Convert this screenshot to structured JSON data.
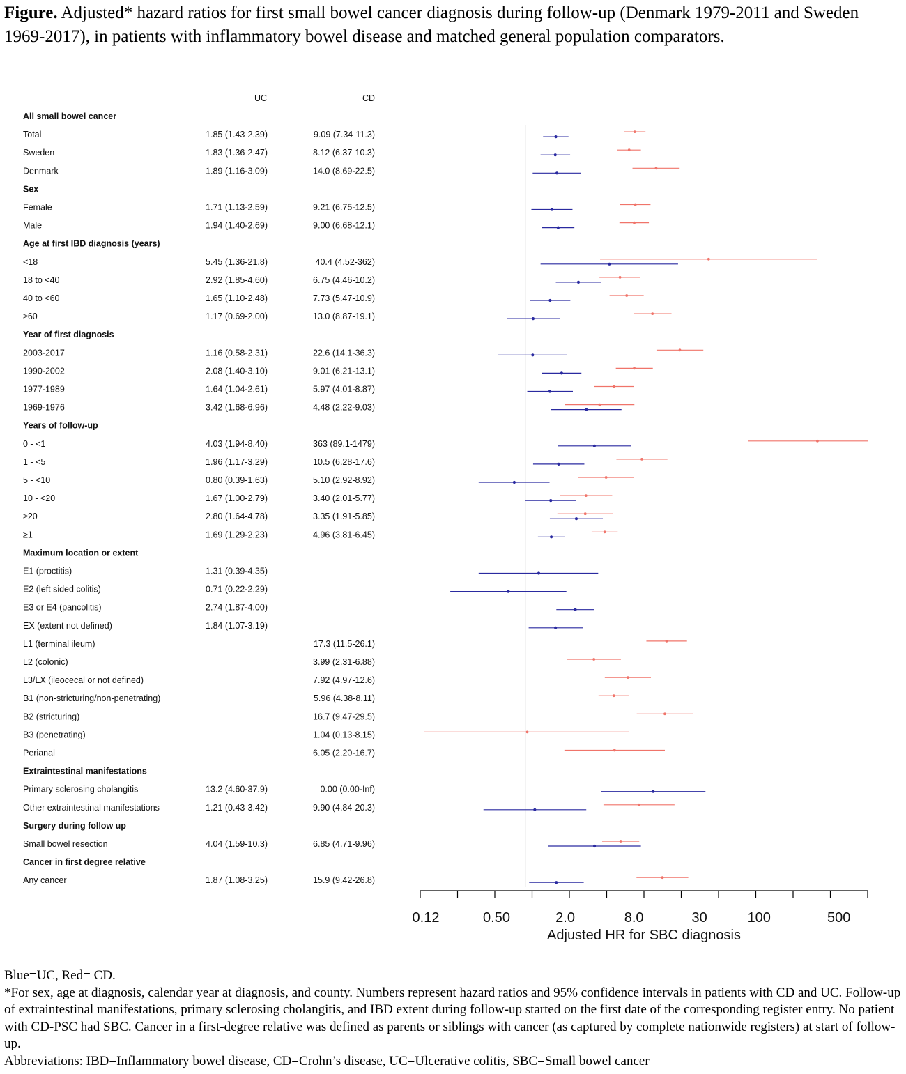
{
  "title": {
    "lead": "Figure.",
    "text": "Adjusted* hazard ratios for first small bowel cancer diagnosis during follow-up (Denmark 1979-2011 and Sweden 1969-2017), in patients with inflammatory bowel disease and matched general population comparators."
  },
  "chart_data": {
    "type": "forest",
    "column_headers": {
      "uc": "UC",
      "cd": "CD"
    },
    "x_scale": "log",
    "xlim": [
      0.12,
      1000
    ],
    "reference_line": 1.0,
    "x_ticks": [
      0.12,
      0.5,
      2.0,
      8.0,
      30,
      100,
      500
    ],
    "x_tick_labels": [
      "0.12",
      "0.50",
      "2.0",
      "8.0",
      "30",
      "100",
      "500"
    ],
    "xlabel": "Adjusted HR for SBC diagnosis",
    "series": [
      {
        "key": "uc",
        "color": "#2a2aa0"
      },
      {
        "key": "cd",
        "color": "#f0746a"
      }
    ],
    "rows": [
      {
        "label": "All small bowel cancer",
        "header": true
      },
      {
        "label": "Total",
        "uc_text": "1.85 (1.43-2.39)",
        "cd_text": "9.09 (7.34-11.3)",
        "uc": [
          1.85,
          1.43,
          2.39
        ],
        "cd": [
          9.09,
          7.34,
          11.3
        ]
      },
      {
        "label": "Sweden",
        "uc_text": "1.83 (1.36-2.47)",
        "cd_text": "8.12 (6.37-10.3)",
        "uc": [
          1.83,
          1.36,
          2.47
        ],
        "cd": [
          8.12,
          6.37,
          10.3
        ]
      },
      {
        "label": "Denmark",
        "uc_text": "1.89 (1.16-3.09)",
        "cd_text": "14.0 (8.69-22.5)",
        "uc": [
          1.89,
          1.16,
          3.09
        ],
        "cd": [
          14.0,
          8.69,
          22.5
        ]
      },
      {
        "label": "Sex",
        "header": true
      },
      {
        "label": "Female",
        "uc_text": "1.71 (1.13-2.59)",
        "cd_text": "9.21 (6.75-12.5)",
        "uc": [
          1.71,
          1.13,
          2.59
        ],
        "cd": [
          9.21,
          6.75,
          12.5
        ]
      },
      {
        "label": "Male",
        "uc_text": "1.94 (1.40-2.69)",
        "cd_text": "9.00 (6.68-12.1)",
        "uc": [
          1.94,
          1.4,
          2.69
        ],
        "cd": [
          9.0,
          6.68,
          12.1
        ]
      },
      {
        "label": "Age at first IBD diagnosis (years)",
        "header": true
      },
      {
        "label": "<18",
        "uc_text": "5.45 (1.36-21.8)",
        "cd_text": "40.4 (4.52-362)",
        "uc": [
          5.45,
          1.36,
          21.8
        ],
        "cd": [
          40.4,
          4.52,
          362
        ]
      },
      {
        "label": "18 to <40",
        "uc_text": "2.92 (1.85-4.60)",
        "cd_text": "6.75 (4.46-10.2)",
        "uc": [
          2.92,
          1.85,
          4.6
        ],
        "cd": [
          6.75,
          4.46,
          10.2
        ]
      },
      {
        "label": "40 to <60",
        "uc_text": "1.65 (1.10-2.48)",
        "cd_text": "7.73 (5.47-10.9)",
        "uc": [
          1.65,
          1.1,
          2.48
        ],
        "cd": [
          7.73,
          5.47,
          10.9
        ]
      },
      {
        "label": "≥60",
        "uc_text": "1.17 (0.69-2.00)",
        "cd_text": "13.0 (8.87-19.1)",
        "uc": [
          1.17,
          0.69,
          2.0
        ],
        "cd": [
          13.0,
          8.87,
          19.1
        ]
      },
      {
        "label": "Year of first diagnosis",
        "header": true
      },
      {
        "label": "2003-2017",
        "uc_text": "1.16 (0.58-2.31)",
        "cd_text": "22.6 (14.1-36.3)",
        "uc": [
          1.16,
          0.58,
          2.31
        ],
        "cd": [
          22.6,
          14.1,
          36.3
        ]
      },
      {
        "label": "1990-2002",
        "uc_text": "2.08 (1.40-3.10)",
        "cd_text": "9.01 (6.21-13.1)",
        "uc": [
          2.08,
          1.4,
          3.1
        ],
        "cd": [
          9.01,
          6.21,
          13.1
        ]
      },
      {
        "label": "1977-1989",
        "uc_text": "1.64 (1.04-2.61)",
        "cd_text": "5.97 (4.01-8.87)",
        "uc": [
          1.64,
          1.04,
          2.61
        ],
        "cd": [
          5.97,
          4.01,
          8.87
        ]
      },
      {
        "label": "1969-1976",
        "uc_text": "3.42 (1.68-6.96)",
        "cd_text": "4.48 (2.22-9.03)",
        "uc": [
          3.42,
          1.68,
          6.96
        ],
        "cd": [
          4.48,
          2.22,
          9.03
        ]
      },
      {
        "label": "Years of follow-up",
        "header": true
      },
      {
        "label": "0 - <1",
        "uc_text": "4.03 (1.94-8.40)",
        "cd_text": "363 (89.1-1479)",
        "uc": [
          4.03,
          1.94,
          8.4
        ],
        "cd": [
          363,
          89.1,
          1479
        ]
      },
      {
        "label": "1 - <5",
        "uc_text": "1.96 (1.17-3.29)",
        "cd_text": "10.5 (6.28-17.6)",
        "uc": [
          1.96,
          1.17,
          3.29
        ],
        "cd": [
          10.5,
          6.28,
          17.6
        ]
      },
      {
        "label": "5 - <10",
        "uc_text": "0.80 (0.39-1.63)",
        "cd_text": "5.10 (2.92-8.92)",
        "uc": [
          0.8,
          0.39,
          1.63
        ],
        "cd": [
          5.1,
          2.92,
          8.92
        ]
      },
      {
        "label": "10 - <20",
        "uc_text": "1.67 (1.00-2.79)",
        "cd_text": "3.40 (2.01-5.77)",
        "uc": [
          1.67,
          1.0,
          2.79
        ],
        "cd": [
          3.4,
          2.01,
          5.77
        ]
      },
      {
        "label": "≥20",
        "uc_text": "2.80 (1.64-4.78)",
        "cd_text": "3.35 (1.91-5.85)",
        "uc": [
          2.8,
          1.64,
          4.78
        ],
        "cd": [
          3.35,
          1.91,
          5.85
        ]
      },
      {
        "label": "≥1",
        "uc_text": "1.69 (1.29-2.23)",
        "cd_text": "4.96 (3.81-6.45)",
        "uc": [
          1.69,
          1.29,
          2.23
        ],
        "cd": [
          4.96,
          3.81,
          6.45
        ]
      },
      {
        "label": "Maximum location or extent",
        "header": true
      },
      {
        "label": "E1 (proctitis)",
        "uc_text": "1.31 (0.39-4.35)",
        "cd_text": "",
        "uc": [
          1.31,
          0.39,
          4.35
        ]
      },
      {
        "label": "E2 (left sided colitis)",
        "uc_text": "0.71 (0.22-2.29)",
        "cd_text": "",
        "uc": [
          0.71,
          0.22,
          2.29
        ]
      },
      {
        "label": "E3 or E4 (pancolitis)",
        "uc_text": "2.74 (1.87-4.00)",
        "cd_text": "",
        "uc": [
          2.74,
          1.87,
          4.0
        ]
      },
      {
        "label": "EX (extent not defined)",
        "uc_text": "1.84 (1.07-3.19)",
        "cd_text": "",
        "uc": [
          1.84,
          1.07,
          3.19
        ]
      },
      {
        "label": "L1 (terminal ileum)",
        "uc_text": "",
        "cd_text": "17.3 (11.5-26.1)",
        "cd": [
          17.3,
          11.5,
          26.1
        ]
      },
      {
        "label": "L2 (colonic)",
        "uc_text": "",
        "cd_text": "3.99 (2.31-6.88)",
        "cd": [
          3.99,
          2.31,
          6.88
        ]
      },
      {
        "label": "L3/LX (ileocecal or not defined)",
        "uc_text": "",
        "cd_text": "7.92 (4.97-12.6)",
        "cd": [
          7.92,
          4.97,
          12.6
        ]
      },
      {
        "label": "B1 (non-stricturing/non-penetrating)",
        "uc_text": "",
        "cd_text": "5.96 (4.38-8.11)",
        "cd": [
          5.96,
          4.38,
          8.11
        ]
      },
      {
        "label": "B2 (stricturing)",
        "uc_text": "",
        "cd_text": "16.7 (9.47-29.5)",
        "cd": [
          16.7,
          9.47,
          29.5
        ]
      },
      {
        "label": "B3 (penetrating)",
        "uc_text": "",
        "cd_text": "1.04 (0.13-8.15)",
        "cd": [
          1.04,
          0.13,
          8.15
        ]
      },
      {
        "label": "Perianal",
        "uc_text": "",
        "cd_text": "6.05 (2.20-16.7)",
        "cd": [
          6.05,
          2.2,
          16.7
        ]
      },
      {
        "label": "Extraintestinal manifestations",
        "header": true
      },
      {
        "label": "Primary sclerosing cholangitis",
        "uc_text": "13.2 (4.60-37.9)",
        "cd_text": "0.00 (0.00-Inf)",
        "uc": [
          13.2,
          4.6,
          37.9
        ]
      },
      {
        "label": "Other extraintestinal manifestations",
        "uc_text": "1.21 (0.43-3.42)",
        "cd_text": "9.90 (4.84-20.3)",
        "uc": [
          1.21,
          0.43,
          3.42
        ],
        "cd": [
          9.9,
          4.84,
          20.3
        ]
      },
      {
        "label": "Surgery during follow up",
        "header": true
      },
      {
        "label": "Small bowel resection",
        "uc_text": "4.04 (1.59-10.3)",
        "cd_text": "6.85 (4.71-9.96)",
        "uc": [
          4.04,
          1.59,
          10.3
        ],
        "cd": [
          6.85,
          4.71,
          9.96
        ]
      },
      {
        "label": "Cancer in first degree relative",
        "header": true
      },
      {
        "label": "Any cancer",
        "uc_text": "1.87 (1.08-3.25)",
        "cd_text": "15.9 (9.42-26.8)",
        "uc": [
          1.87,
          1.08,
          3.25
        ],
        "cd": [
          15.9,
          9.42,
          26.8
        ]
      }
    ]
  },
  "footnotes": [
    "Blue=UC, Red= CD.",
    "*For sex, age at diagnosis, calendar year at diagnosis, and county. Numbers represent hazard ratios and 95% confidence intervals in patients with CD and UC. Follow-up of extraintestinal manifestations, primary sclerosing cholangitis, and IBD extent during follow-up started on the first date of the corresponding register entry. No patient with CD-PSC had SBC. Cancer in a first-degree relative was defined as parents or siblings with cancer (as captured by complete nationwide registers) at start of follow-up.",
    "Abbreviations: IBD=Inflammatory bowel disease, CD=Crohn’s disease, UC=Ulcerative colitis, SBC=Small bowel cancer"
  ]
}
